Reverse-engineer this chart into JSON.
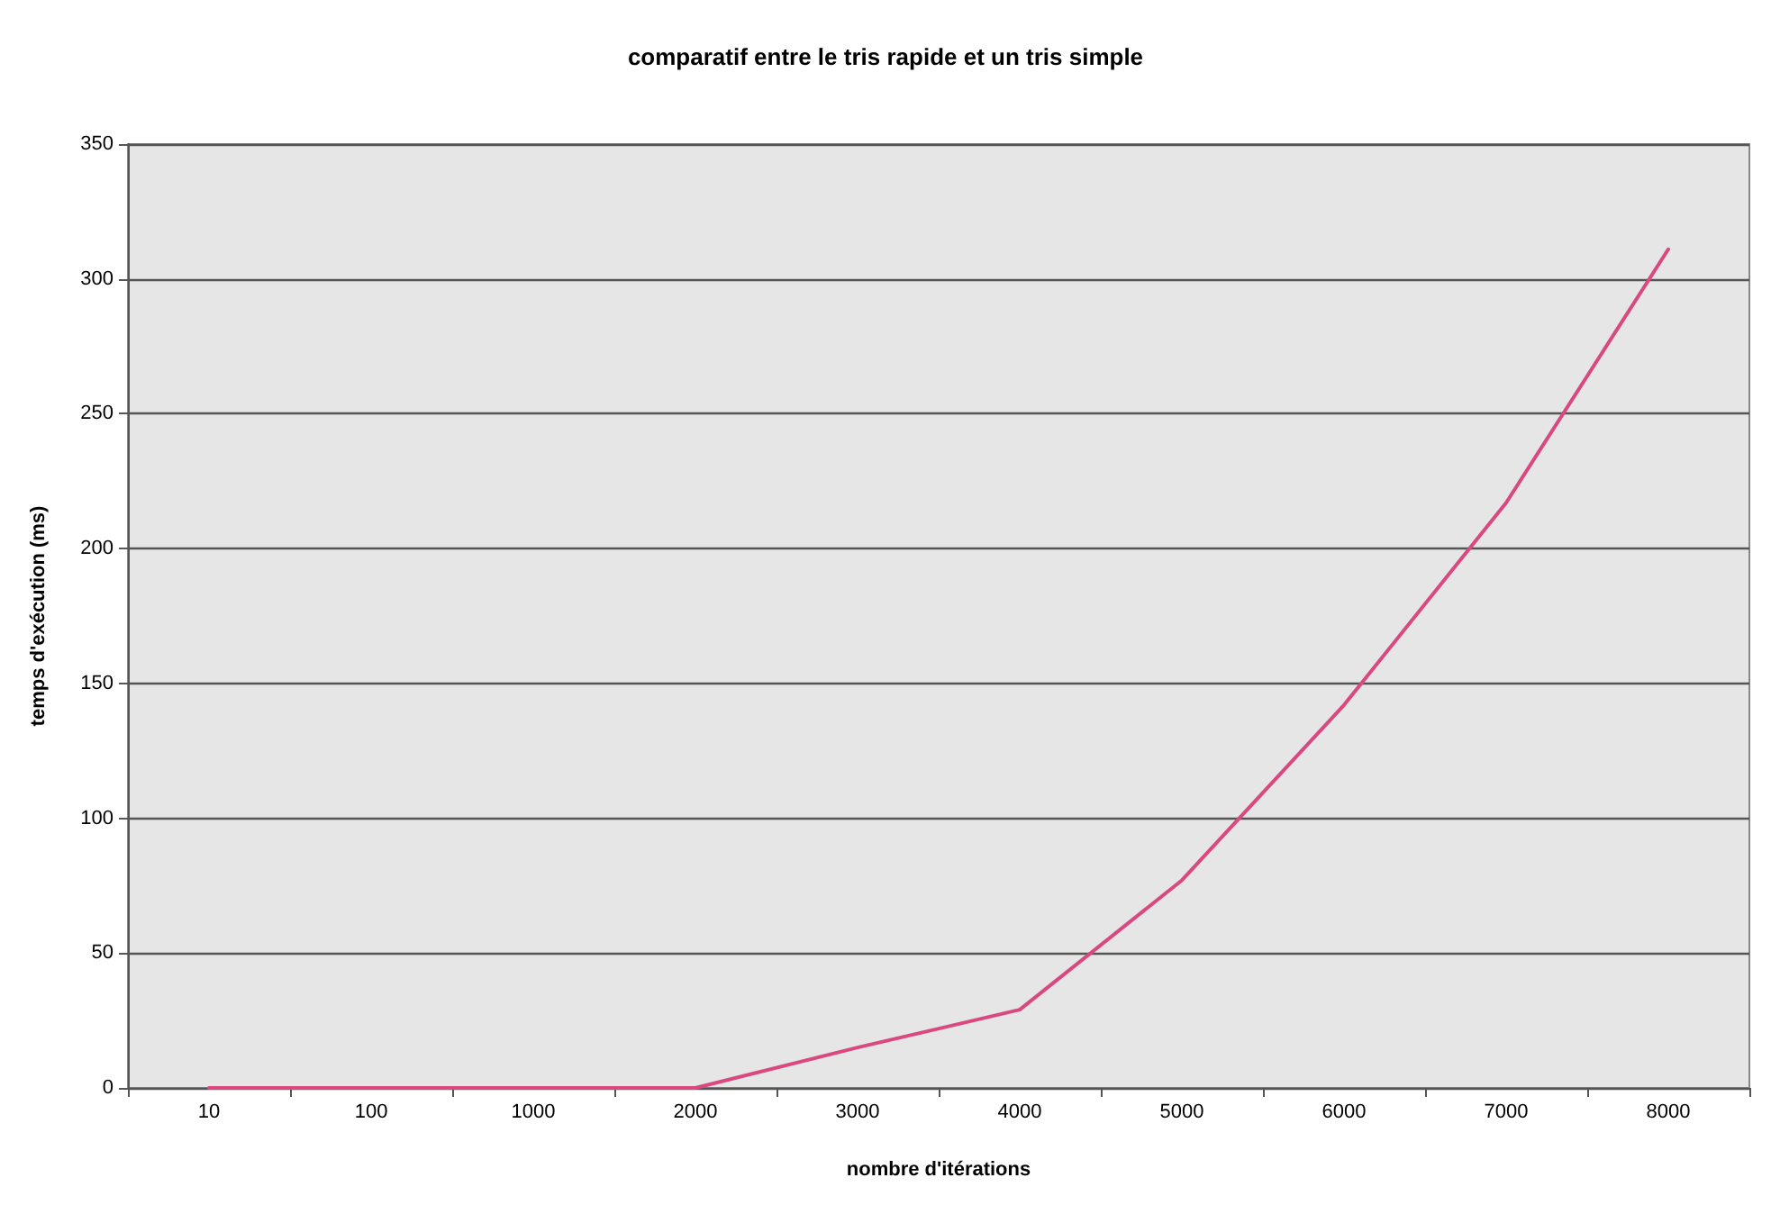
{
  "chart_data": {
    "type": "line",
    "title": "comparatif entre le tris rapide et un tris simple",
    "xlabel": "nombre d'itérations",
    "ylabel": "temps d'exécution (ms)",
    "categories": [
      "10",
      "100",
      "1000",
      "2000",
      "3000",
      "4000",
      "5000",
      "6000",
      "7000",
      "8000"
    ],
    "series": [
      {
        "color": "#d9487e",
        "values": [
          0,
          0,
          0,
          0,
          15,
          29,
          77,
          142,
          217,
          311
        ]
      }
    ],
    "ylim": [
      0,
      350
    ],
    "yticks": [
      0,
      50,
      100,
      150,
      200,
      250,
      300,
      350
    ],
    "grid": "y",
    "marker": "none",
    "line_style": "solid"
  }
}
